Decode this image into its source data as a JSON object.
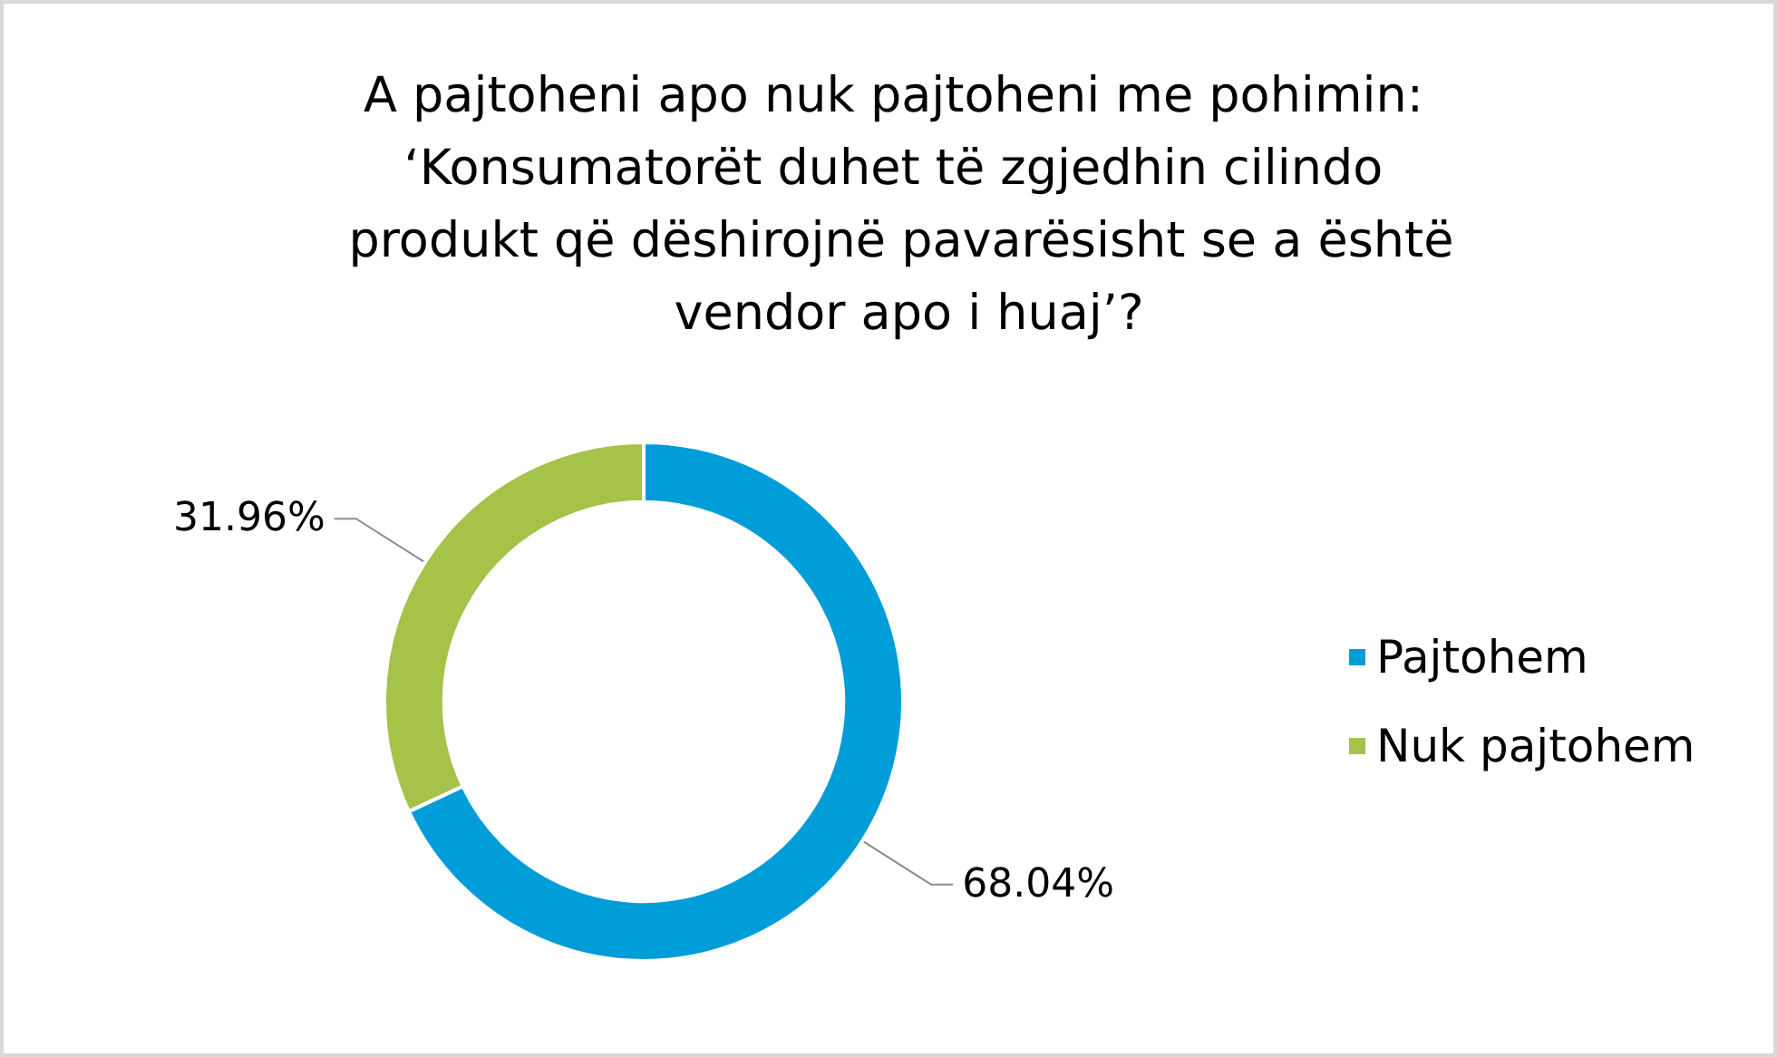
{
  "chart_data": {
    "type": "donut",
    "title": "A pajtoheni apo nuk pajtoheni me pohimin: ‘Konsumatorët duhet të zgjedhin cilindo produkt që dëshirojnë pavarësisht se a është vendor apo i huaj’?",
    "categories": [
      "Pajtohem",
      "Nuk pajtohem"
    ],
    "values": [
      68.04,
      31.96
    ],
    "colors": [
      "#009dd9",
      "#a5c249"
    ],
    "value_labels": [
      "68.04%",
      "31.96%"
    ],
    "legend": "right"
  }
}
